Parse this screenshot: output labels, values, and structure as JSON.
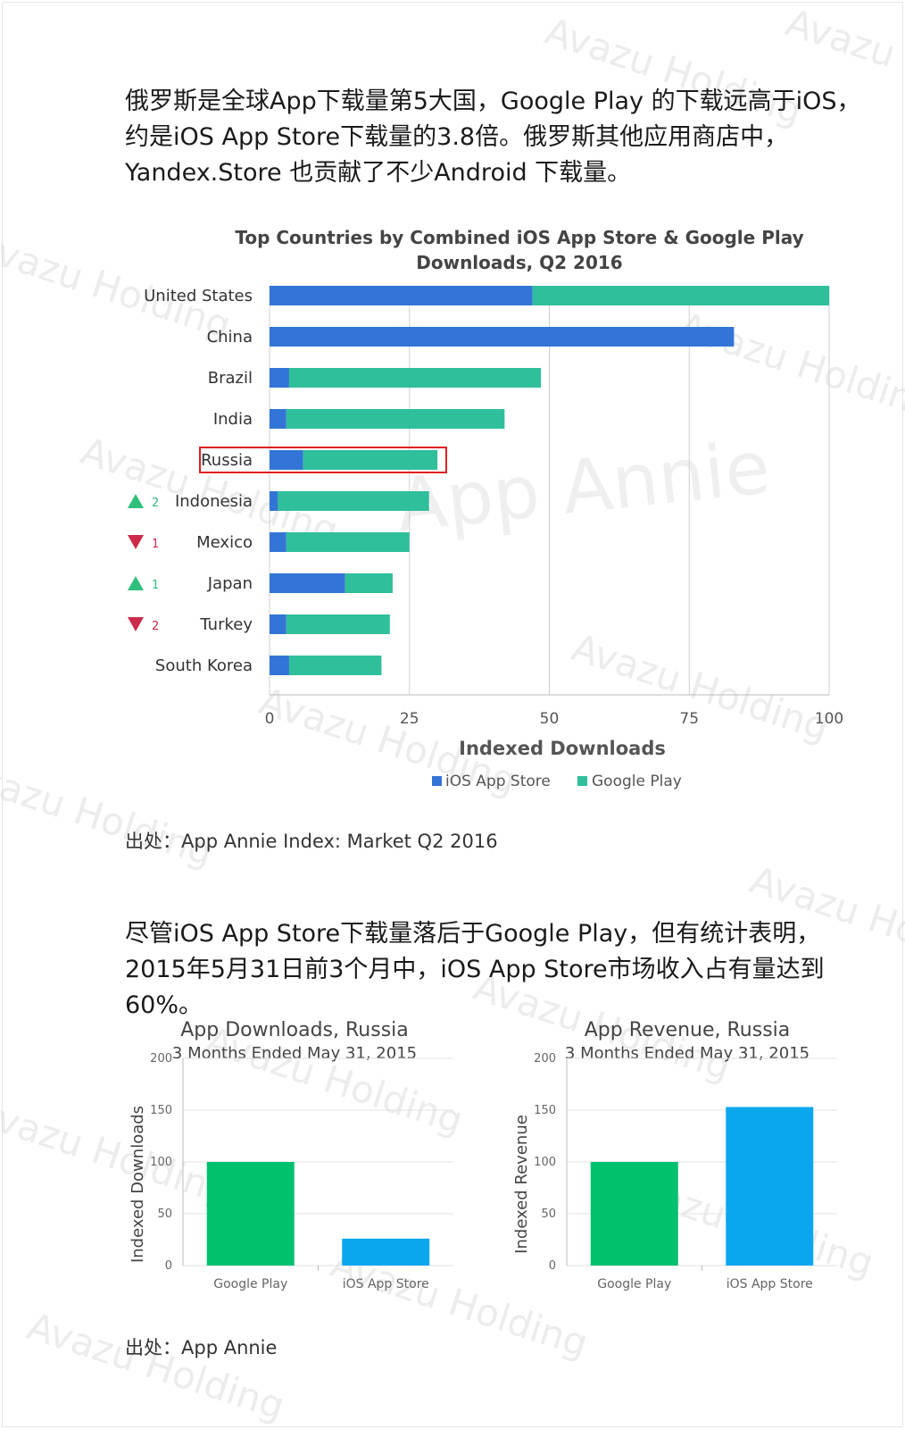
{
  "paragraphs": {
    "p1": "俄罗斯是全球App下载量第5大国，Google Play 的下载远高于iOS，约是iOS App Store下载量的3.8倍。俄罗斯其他应用商店中，Yandex.Store 也贡献了不少Android 下载量。",
    "p2": "尽管iOS App Store下载量落后于Google Play，但有统计表明，2015年5月31日前3个月中，iOS App Store市场收入占有量达到60%。"
  },
  "sources": {
    "s1": "出处：App Annie Index: Market Q2 2016",
    "s2": "出处：App Annie"
  },
  "watermark": {
    "text": "Avazu Holding",
    "chart_text": "App Annie"
  },
  "colors": {
    "ios_blue": "#3375d6",
    "gp_teal": "#2fbf9b",
    "highlight": "#e02020",
    "up": "#2fbf7b",
    "down": "#cc2a4a",
    "bar_green": "#00c16e",
    "bar_blue": "#0aa7ef"
  },
  "chart_data": [
    {
      "type": "bar",
      "orientation": "horizontal",
      "stacked": true,
      "title_line1": "Top Countries by Combined iOS App Store & Google Play",
      "title_line2": "Downloads, Q2 2016",
      "xlabel": "Indexed Downloads",
      "xlim": [
        0,
        100
      ],
      "xticks": [
        "0",
        "25",
        "50",
        "75",
        "100"
      ],
      "grid": true,
      "legend_position": "bottom",
      "highlight": "Russia",
      "categories": [
        "United States",
        "China",
        "Brazil",
        "India",
        "Russia",
        "Indonesia",
        "Mexico",
        "Japan",
        "Turkey",
        "South Korea"
      ],
      "rank_change": [
        {
          "country": "Indonesia",
          "direction": "up",
          "value": "2"
        },
        {
          "country": "Mexico",
          "direction": "down",
          "value": "1"
        },
        {
          "country": "Japan",
          "direction": "up",
          "value": "1"
        },
        {
          "country": "Turkey",
          "direction": "down",
          "value": "2"
        }
      ],
      "series": [
        {
          "name": "iOS App Store",
          "values": [
            47,
            83,
            3.5,
            3,
            6,
            1.5,
            3,
            13.5,
            3,
            3.5
          ]
        },
        {
          "name": "Google Play",
          "values": [
            53,
            0,
            45,
            39,
            24,
            27,
            22,
            8.5,
            18.5,
            16.5
          ]
        }
      ]
    },
    {
      "type": "bar",
      "title": "App Downloads, Russia",
      "subtitle": "3 Months Ended May 31, 2015",
      "ylabel": "Indexed Downloads",
      "ylim": [
        0,
        200
      ],
      "yticks": [
        "0",
        "50",
        "100",
        "150",
        "200"
      ],
      "grid": true,
      "categories": [
        "Google Play",
        "iOS App Store"
      ],
      "values": [
        100,
        26
      ]
    },
    {
      "type": "bar",
      "title": "App Revenue, Russia",
      "subtitle": "3 Months Ended May 31, 2015",
      "ylabel": "Indexed Revenue",
      "ylim": [
        0,
        200
      ],
      "yticks": [
        "0",
        "50",
        "100",
        "150",
        "200"
      ],
      "grid": true,
      "categories": [
        "Google Play",
        "iOS App Store"
      ],
      "values": [
        100,
        153
      ]
    }
  ]
}
